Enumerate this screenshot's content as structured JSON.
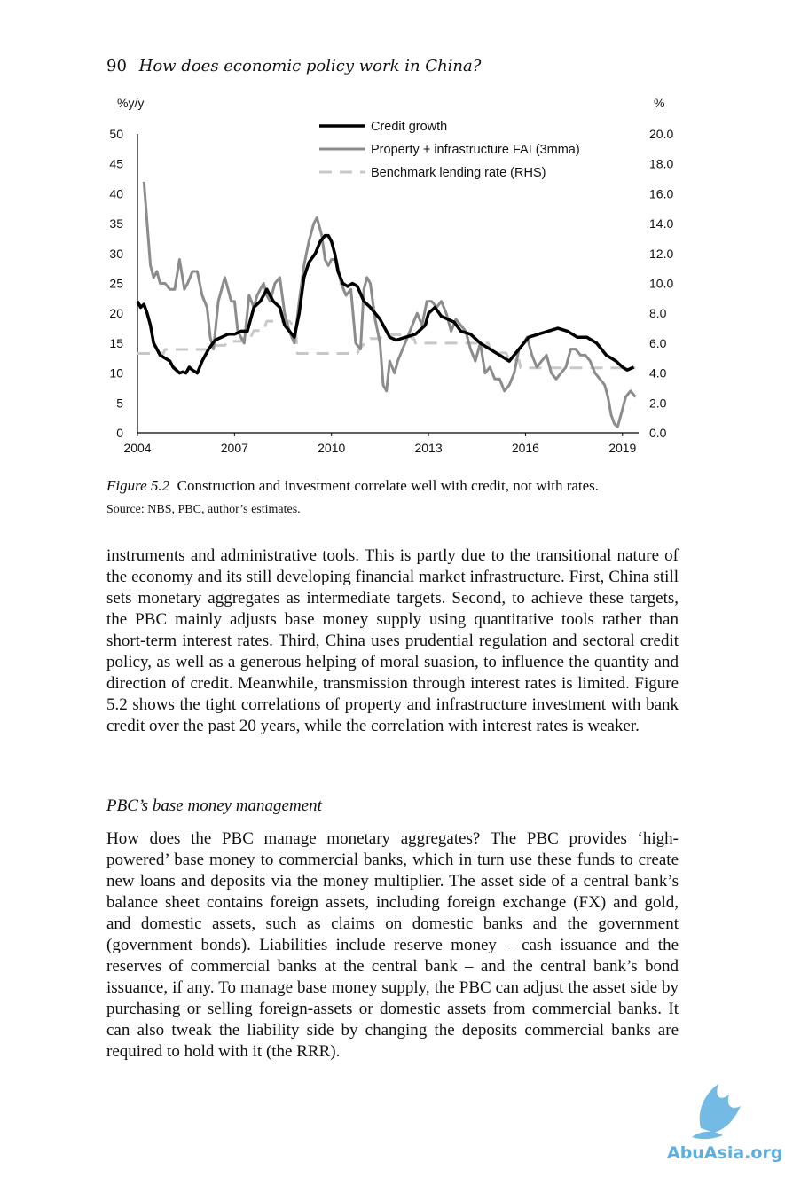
{
  "header": {
    "page_number": "90",
    "running_title": "How does economic policy work in China?"
  },
  "figure": {
    "label": "Figure 5.2",
    "caption": "Construction and investment correlate well with credit, not with rates.",
    "source": "Source: NBS, PBC, author’s estimates."
  },
  "chart_data": {
    "type": "line",
    "left_axis_label": "%y/y",
    "right_axis_label": "%",
    "x_ticks": [
      "2004",
      "2007",
      "2010",
      "2013",
      "2016",
      "2019"
    ],
    "y_left_ticks": [
      "0",
      "5",
      "10",
      "15",
      "20",
      "25",
      "30",
      "35",
      "40",
      "45",
      "50"
    ],
    "y_right_ticks": [
      "0.0",
      "2.0",
      "4.0",
      "6.0",
      "8.0",
      "10.0",
      "12.0",
      "14.0",
      "16.0",
      "18.0",
      "20.0"
    ],
    "ylim_left": [
      0,
      50
    ],
    "ylim_right": [
      0,
      20
    ],
    "xlim": [
      2004,
      2019.5
    ],
    "legend_position": "top-center",
    "colors": {
      "credit": "#000000",
      "fai": "#8c8c8c",
      "rate": "#c8c8c8"
    },
    "series": [
      {
        "name": "Credit growth",
        "axis": "left",
        "style": "solid-thick",
        "x": [
          2004.0,
          2004.1,
          2004.2,
          2004.3,
          2004.4,
          2004.5,
          2004.6,
          2004.7,
          2004.85,
          2005.0,
          2005.1,
          2005.2,
          2005.3,
          2005.4,
          2005.5,
          2005.6,
          2005.7,
          2005.85,
          2006.0,
          2006.2,
          2006.4,
          2006.6,
          2006.8,
          2007.0,
          2007.2,
          2007.4,
          2007.6,
          2007.8,
          2007.9,
          2008.0,
          2008.2,
          2008.4,
          2008.55,
          2008.7,
          2008.85,
          2009.0,
          2009.15,
          2009.3,
          2009.5,
          2009.65,
          2009.8,
          2009.9,
          2010.0,
          2010.1,
          2010.2,
          2010.35,
          2010.5,
          2010.65,
          2010.8,
          2011.0,
          2011.2,
          2011.5,
          2011.8,
          2012.0,
          2012.3,
          2012.6,
          2012.9,
          2013.0,
          2013.2,
          2013.4,
          2013.6,
          2013.8,
          2014.0,
          2014.3,
          2014.6,
          2014.9,
          2015.2,
          2015.5,
          2015.8,
          2016.1,
          2016.4,
          2016.7,
          2017.0,
          2017.3,
          2017.6,
          2017.9,
          2018.2,
          2018.5,
          2018.8,
          2019.0,
          2019.15,
          2019.35
        ],
        "values": [
          22,
          21,
          21.5,
          20,
          18,
          15,
          14,
          13,
          12.5,
          12,
          11,
          10.5,
          10,
          10.2,
          10,
          11,
          10.5,
          10,
          12,
          14,
          15.5,
          16,
          16.5,
          16.5,
          17,
          17,
          21,
          22,
          23,
          24,
          22,
          21,
          18,
          17,
          16,
          20,
          26,
          28.5,
          30,
          32,
          33,
          33,
          32,
          30,
          27,
          25,
          24.5,
          25,
          24.5,
          22,
          21,
          19,
          16,
          15.5,
          16,
          16.5,
          18,
          20,
          21,
          19.5,
          19,
          18.5,
          17,
          16.5,
          15,
          14,
          13,
          12,
          14,
          16,
          16.5,
          17,
          17.5,
          17,
          16,
          16,
          15,
          13,
          12,
          11,
          10.5,
          11
        ]
      },
      {
        "name": "Property + infrastructure FAI (3mma)",
        "axis": "left",
        "style": "solid-gray",
        "x": [
          2004.2,
          2004.3,
          2004.4,
          2004.5,
          2004.6,
          2004.7,
          2004.85,
          2005.0,
          2005.15,
          2005.3,
          2005.45,
          2005.55,
          2005.7,
          2005.85,
          2006.0,
          2006.15,
          2006.25,
          2006.35,
          2006.5,
          2006.6,
          2006.7,
          2006.8,
          2006.9,
          2007.0,
          2007.1,
          2007.2,
          2007.3,
          2007.45,
          2007.6,
          2007.7,
          2007.8,
          2007.9,
          2008.0,
          2008.1,
          2008.25,
          2008.4,
          2008.55,
          2008.7,
          2008.85,
          2009.0,
          2009.15,
          2009.3,
          2009.45,
          2009.55,
          2009.7,
          2009.8,
          2009.9,
          2010.0,
          2010.15,
          2010.3,
          2010.45,
          2010.6,
          2010.75,
          2010.9,
          2011.0,
          2011.1,
          2011.2,
          2011.35,
          2011.5,
          2011.6,
          2011.7,
          2011.8,
          2011.95,
          2012.05,
          2012.2,
          2012.35,
          2012.5,
          2012.65,
          2012.8,
          2012.95,
          2013.1,
          2013.25,
          2013.4,
          2013.55,
          2013.7,
          2013.85,
          2014.0,
          2014.15,
          2014.3,
          2014.45,
          2014.6,
          2014.75,
          2014.9,
          2015.05,
          2015.2,
          2015.35,
          2015.5,
          2015.65,
          2015.8,
          2015.95,
          2016.05,
          2016.2,
          2016.35,
          2016.5,
          2016.65,
          2016.8,
          2016.95,
          2017.1,
          2017.25,
          2017.4,
          2017.55,
          2017.7,
          2017.85,
          2018.0,
          2018.15,
          2018.3,
          2018.45,
          2018.55,
          2018.65,
          2018.75,
          2018.85,
          2018.95,
          2019.1,
          2019.25,
          2019.4
        ],
        "values": [
          42,
          35,
          28,
          26,
          27,
          25,
          25,
          24,
          24,
          29,
          24,
          25,
          27,
          27,
          23,
          21,
          16,
          14,
          22,
          24,
          26,
          24,
          22,
          22,
          17,
          16,
          15,
          23,
          21,
          23,
          24,
          25,
          23,
          22,
          25,
          26,
          20,
          17,
          15,
          22,
          28,
          32,
          35,
          36,
          33,
          29,
          28,
          29,
          29,
          25,
          23,
          24,
          15,
          14,
          24,
          26,
          25,
          19,
          15,
          8,
          7,
          12,
          10,
          12,
          14,
          16,
          18,
          20,
          18,
          22,
          22,
          21,
          22,
          20,
          17,
          19,
          18,
          17,
          14,
          12,
          15,
          10,
          11,
          9,
          9,
          7,
          8,
          10,
          14,
          15,
          16,
          13,
          11,
          12,
          13,
          10,
          9,
          10,
          11,
          14,
          14,
          13,
          13,
          12,
          10,
          9,
          8,
          6,
          3,
          1.5,
          1,
          3,
          6,
          7,
          6
        ]
      },
      {
        "name": "Benchmark lending rate (RHS)",
        "axis": "right",
        "style": "dashed",
        "x": [
          2004.0,
          2004.8,
          2004.85,
          2006.3,
          2006.4,
          2006.7,
          2006.8,
          2007.2,
          2007.3,
          2007.5,
          2007.6,
          2007.9,
          2008.0,
          2008.7,
          2008.8,
          2008.9,
          2008.95,
          2010.8,
          2010.85,
          2010.95,
          2011.05,
          2011.1,
          2011.2,
          2011.5,
          2011.6,
          2012.4,
          2012.5,
          2012.55,
          2012.6,
          2014.85,
          2014.9,
          2015.15,
          2015.2,
          2015.4,
          2015.45,
          2015.65,
          2015.7,
          2015.8,
          2015.85,
          2019.4
        ],
        "values": [
          5.31,
          5.31,
          5.58,
          5.58,
          5.85,
          5.85,
          6.12,
          6.12,
          6.39,
          6.39,
          6.84,
          6.84,
          7.47,
          7.47,
          7.2,
          6.66,
          5.31,
          5.31,
          5.56,
          5.81,
          6.06,
          6.06,
          6.31,
          6.31,
          6.56,
          6.56,
          6.31,
          6.31,
          6.0,
          6.0,
          5.6,
          5.6,
          5.35,
          5.35,
          5.1,
          5.1,
          4.85,
          4.85,
          4.35,
          4.35
        ]
      }
    ]
  },
  "paragraph1": [
    "instruments and administrative tools. This is partly due to the transitional nature of the economy and its still developing financial market infrastructure. First, China still sets monetary aggregates as intermediate targets. Second, to achieve these targets, the PBC mainly adjusts base money supply using quantitative tools rather than short-term interest rates. Third, China uses prudential regulation and sectoral credit policy, as well as a generous helping of moral suasion, to influence the quantity and direction of credit. Meanwhile, transmission through interest rates is limited. Figure 5.2 shows the tight correlations of property and infrastructure investment with bank credit over the past 20 years, while the correlation with interest rates is weaker."
  ],
  "section_heading": "PBC’s base money management",
  "paragraph2": "How does the PBC manage monetary aggregates? The PBC provides ‘high-powered’ base money to commercial banks, which in turn use these funds to create new loans and deposits via the money multiplier. The asset side of a central bank’s balance sheet contains foreign assets, including foreign exchange (FX) and gold, and domestic assets, such as claims on domestic banks and the government (government bonds). Liabilities include reserve money – cash issuance and the reserves of commercial banks at the central bank – and the central bank’s bond issuance, if any. To manage base money supply, the PBC can adjust the asset side by purchasing or selling foreign-assets or domestic assets from commercial banks. It can also tweak the liability side by changing the deposits commercial banks are required to hold with it (the RRR).",
  "watermark": {
    "text": "AbuAsia.org",
    "color": "#5aaee0"
  }
}
